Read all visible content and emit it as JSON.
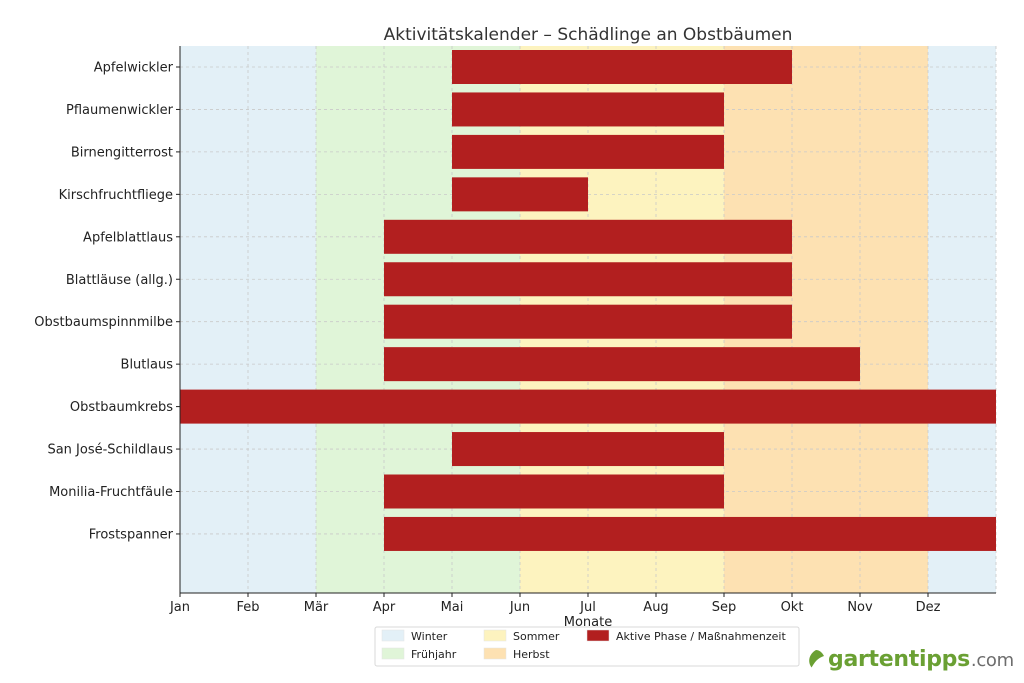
{
  "chart_data": {
    "type": "gantt",
    "title": "Aktivitätskalender – Schädlinge an Obstbäumen",
    "xlabel": "Monate",
    "ylabel": "",
    "months": [
      "Jan",
      "Feb",
      "Mär",
      "Apr",
      "Mai",
      "Jun",
      "Jul",
      "Aug",
      "Sep",
      "Okt",
      "Nov",
      "Dez"
    ],
    "xlim": [
      1,
      13
    ],
    "grid": true,
    "seasons": [
      {
        "name": "Winter",
        "start": 1,
        "end": 3,
        "color": "#e3f0f7"
      },
      {
        "name": "Frühjahr",
        "start": 3,
        "end": 6,
        "color": "#e0f5d8"
      },
      {
        "name": "Sommer",
        "start": 6,
        "end": 9,
        "color": "#fdf3bf"
      },
      {
        "name": "Herbst",
        "start": 9,
        "end": 12,
        "color": "#fde1b2"
      },
      {
        "name": "Winter",
        "start": 12,
        "end": 13,
        "color": "#e3f0f7"
      }
    ],
    "bar_color": "#b21f1f",
    "series": [
      {
        "name": "Apfelwickler",
        "start": 5,
        "end": 10
      },
      {
        "name": "Pflaumenwickler",
        "start": 5,
        "end": 9
      },
      {
        "name": "Birnengitterrost",
        "start": 5,
        "end": 9
      },
      {
        "name": "Kirschfruchtfliege",
        "start": 5,
        "end": 7
      },
      {
        "name": "Apfelblattlaus",
        "start": 4,
        "end": 10
      },
      {
        "name": "Blattläuse (allg.)",
        "start": 4,
        "end": 10
      },
      {
        "name": "Obstbaumspinnmilbe",
        "start": 4,
        "end": 10
      },
      {
        "name": "Blutlaus",
        "start": 4,
        "end": 11
      },
      {
        "name": "Obstbaumkrebs",
        "start": 1,
        "end": 13
      },
      {
        "name": "San José-Schildlaus",
        "start": 5,
        "end": 9
      },
      {
        "name": "Monilia-Fruchtfäule",
        "start": 4,
        "end": 9
      },
      {
        "name": "Frostspanner",
        "start": 4,
        "end": 13
      }
    ],
    "legend": {
      "position": "bottom-center",
      "entries": [
        {
          "label": "Winter",
          "color": "#e3f0f7"
        },
        {
          "label": "Frühjahr",
          "color": "#e0f5d8"
        },
        {
          "label": "Sommer",
          "color": "#fdf3bf"
        },
        {
          "label": "Herbst",
          "color": "#fde1b2"
        },
        {
          "label": "Aktive Phase / Maßnahmenzeit",
          "color": "#b21f1f"
        }
      ]
    }
  },
  "watermark": {
    "brand": "gartentipps",
    "tld": ".com",
    "brand_color": "#6aa033"
  }
}
